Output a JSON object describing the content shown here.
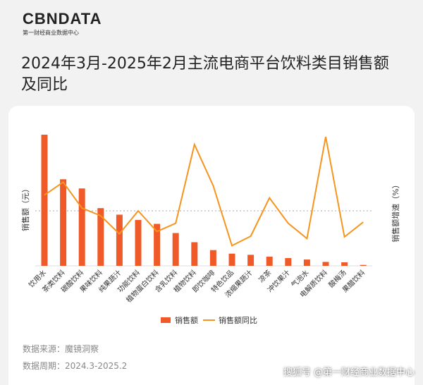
{
  "header": {
    "logo": "CBNDATA",
    "logo_sub": "第一财经商业数据中心"
  },
  "colors": {
    "bar": "#f05a28",
    "line": "#f7941d"
  },
  "chart_data": {
    "type": "bar+line",
    "title": "2024年3月-2025年2月主流电商平台饮料类目销售额及同比",
    "ylabel": "销售额（元）",
    "y2label": "销售额增速（%）",
    "categories": [
      "饮用水",
      "茶类饮料",
      "碳酸饮料",
      "果味饮料",
      "纯果蔬汁",
      "功能饮料",
      "植物蛋白饮料",
      "含乳饮料",
      "植物饮料",
      "即饮咖啡",
      "特色饮品",
      "浓缩果蔬汁",
      "凉茶",
      "冲饮果汁",
      "气泡水",
      "电解质饮料",
      "酸梅汤",
      "果醋饮料"
    ],
    "series": [
      {
        "name": "销售额",
        "type": "bar",
        "values": [
          100,
          66,
          59,
          44,
          39,
          35,
          32,
          25,
          18,
          12,
          9.3,
          8.4,
          7,
          5.9,
          4.8,
          3,
          2.7,
          0.7
        ]
      },
      {
        "name": "销售额同比",
        "type": "line",
        "values": [
          67,
          122,
          12,
          -21,
          -98,
          0,
          -88,
          -53,
          282,
          107,
          -148,
          -108,
          55,
          -53,
          -118,
          315,
          -111,
          -48
        ]
      }
    ],
    "reference_line": 0,
    "legend": "bottom"
  },
  "footer": {
    "source": "数据来源：魔镜洞察",
    "period": "数据周期：2024.3-2025.2",
    "watermark": "搜狐号 @第一财经商业数据中心"
  }
}
